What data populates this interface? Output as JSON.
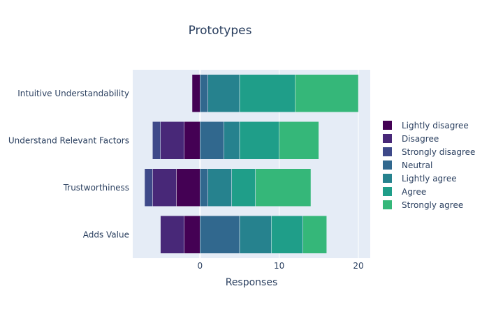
{
  "chart_data": {
    "type": "bar",
    "orientation": "horizontal",
    "barmode": "relative",
    "title": "Prototypes",
    "xlabel": "Responses",
    "ylabel": "",
    "xlim": [
      -8.5,
      21.5
    ],
    "xticks": [
      0,
      10,
      20
    ],
    "grid": true,
    "legend_position": "right",
    "categories": [
      "Adds Value",
      "Trustworthiness",
      "Understand Relevant Factors",
      "Intuitive Understandability"
    ],
    "series": [
      {
        "name": "Lightly disagree",
        "color": "#440154",
        "values": [
          -2,
          -3,
          -2,
          -1
        ]
      },
      {
        "name": "Disagree",
        "color": "#482878",
        "values": [
          -3,
          -3,
          -3,
          0
        ]
      },
      {
        "name": "Strongly disagree",
        "color": "#3e4989",
        "values": [
          0,
          -1,
          -1,
          0
        ]
      },
      {
        "name": "Neutral",
        "color": "#31688e",
        "values": [
          5,
          1,
          3,
          1
        ]
      },
      {
        "name": "Lightly agree",
        "color": "#26828e",
        "values": [
          4,
          3,
          2,
          4
        ]
      },
      {
        "name": "Agree",
        "color": "#1f9e89",
        "values": [
          4,
          3,
          5,
          7
        ]
      },
      {
        "name": "Strongly agree",
        "color": "#35b779",
        "values": [
          3,
          7,
          5,
          8
        ]
      }
    ]
  }
}
